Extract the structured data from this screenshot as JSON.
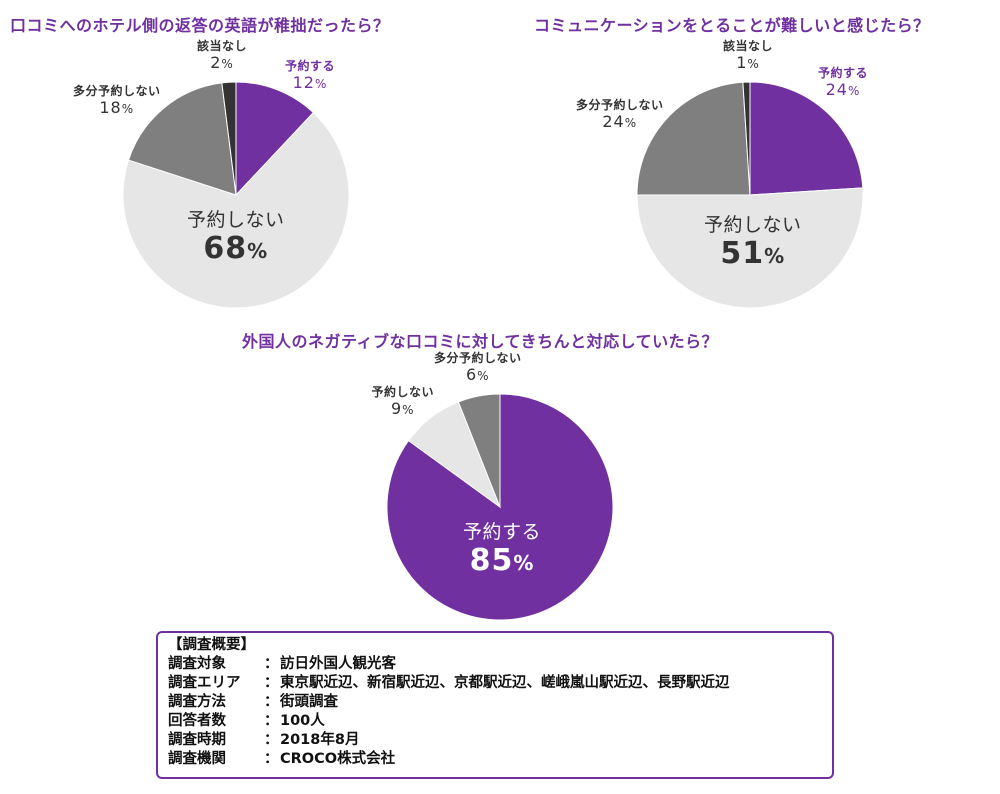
{
  "colors": {
    "purple": "#7030a0",
    "light_gray": "#e6e6e6",
    "mid_gray": "#7f7f7f",
    "dark_gray": "#333333"
  },
  "chart_data": [
    {
      "type": "pie",
      "title": "口コミへのホテル側の返答の英語が稚拙だったら？",
      "slices": [
        {
          "label": "予約する",
          "value": 12,
          "color": "#7030a0"
        },
        {
          "label": "予約しない",
          "value": 68,
          "color": "#e6e6e6"
        },
        {
          "label": "多分予約しない",
          "value": 18,
          "color": "#7f7f7f"
        },
        {
          "label": "該当なし",
          "value": 2,
          "color": "#333333"
        }
      ]
    },
    {
      "type": "pie",
      "title": "コミュニケーションをとることが難しいと感じたら？",
      "slices": [
        {
          "label": "予約する",
          "value": 24,
          "color": "#7030a0"
        },
        {
          "label": "予約しない",
          "value": 51,
          "color": "#e6e6e6"
        },
        {
          "label": "多分予約しない",
          "value": 24,
          "color": "#7f7f7f"
        },
        {
          "label": "該当なし",
          "value": 1,
          "color": "#333333"
        }
      ]
    },
    {
      "type": "pie",
      "title": "外国人のネガティブな口コミに対してきちんと対応していたら？",
      "slices": [
        {
          "label": "予約する",
          "value": 85,
          "color": "#7030a0"
        },
        {
          "label": "予約しない",
          "value": 9,
          "color": "#e6e6e6"
        },
        {
          "label": "多分予約しない",
          "value": 6,
          "color": "#7f7f7f"
        }
      ]
    }
  ],
  "percent_sign": "%",
  "summary": {
    "heading": "【調査概要】",
    "separator": "：",
    "rows": [
      {
        "key": "調査対象",
        "value": "訪日外国人観光客"
      },
      {
        "key": "調査エリア",
        "value": "東京駅近辺、新宿駅近辺、京都駅近辺、嵯峨嵐山駅近辺、長野駅近辺"
      },
      {
        "key": "調査方法",
        "value": "街頭調査"
      },
      {
        "key": "回答者数",
        "value": "100人"
      },
      {
        "key": "調査時期",
        "value": "2018年8月"
      },
      {
        "key": "調査機関",
        "value": "CROCO株式会社"
      }
    ]
  }
}
